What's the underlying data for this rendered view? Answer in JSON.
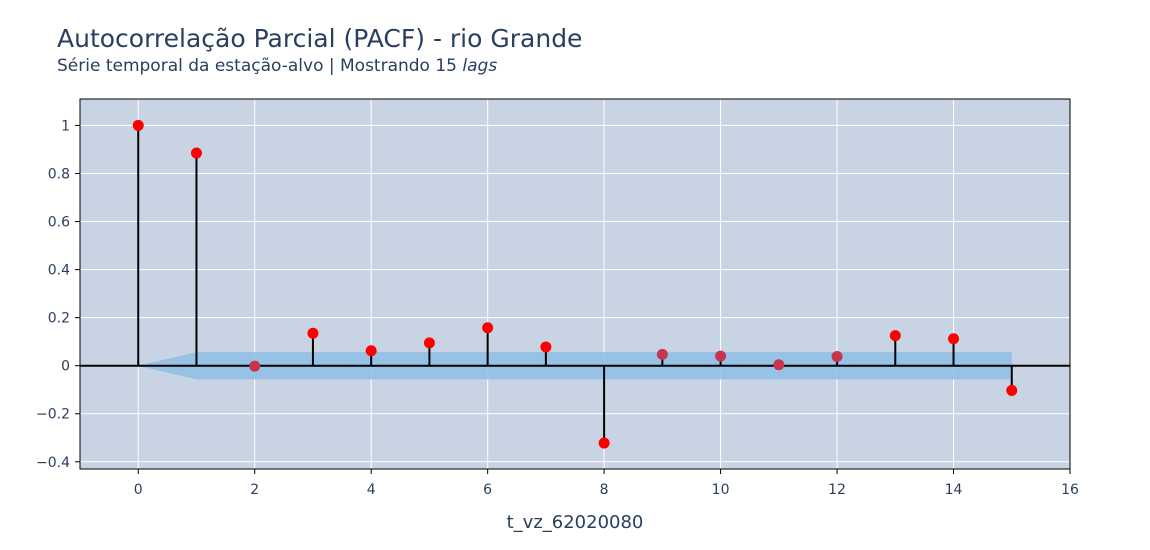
{
  "chart_data": {
    "type": "scatter",
    "title": "Autocorrelação Parcial (PACF) - rio Grande",
    "subtitle_text": "Série temporal da estação-alvo | Mostrando 15 ",
    "subtitle_italic": "lags",
    "xlabel": "t_vz_62020080",
    "ylabel": "",
    "xlim": [
      -1,
      16
    ],
    "ylim": [
      -0.43,
      1.11
    ],
    "x_ticks": [
      0,
      2,
      4,
      6,
      8,
      10,
      12,
      14,
      16
    ],
    "x_tick_labels": [
      "0",
      "2",
      "4",
      "6",
      "8",
      "10",
      "12",
      "14",
      "16"
    ],
    "y_ticks": [
      -0.4,
      -0.2,
      0,
      0.2,
      0.4,
      0.6,
      0.8,
      1
    ],
    "y_tick_labels": [
      "−0.4",
      "−0.2",
      "0",
      "0.2",
      "0.4",
      "0.6",
      "0.8",
      "1"
    ],
    "grid": true,
    "lags": [
      0,
      1,
      2,
      3,
      4,
      5,
      6,
      7,
      8,
      9,
      10,
      11,
      12,
      13,
      14,
      15
    ],
    "values": [
      1.0,
      0.885,
      -0.002,
      0.135,
      0.062,
      0.095,
      0.158,
      0.078,
      -0.322,
      0.047,
      0.04,
      0.004,
      0.038,
      0.125,
      0.112,
      -0.103
    ],
    "confidence_band": {
      "x": [
        0,
        1,
        15
      ],
      "upper": [
        0.0,
        0.057,
        0.057
      ],
      "lower": [
        0.0,
        -0.057,
        -0.057
      ]
    },
    "colors": {
      "marker": "#ff0000",
      "marker_in_band": "#c8354a",
      "stem": "#000000",
      "band": "#8fbde6",
      "plot_bg": "#c8d4e4",
      "grid": "#ffffff"
    }
  }
}
